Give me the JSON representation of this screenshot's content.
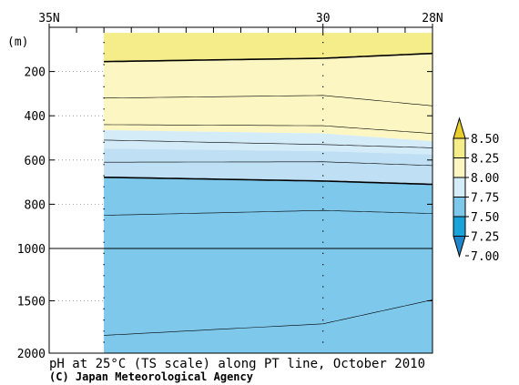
{
  "chart_data": {
    "type": "section-contour",
    "title": "pH at 25°C (TS scale) along PT line, October 2010",
    "credit": "(C) Japan Meteorological Agency",
    "y_unit_label": "(m)",
    "top_axis_labels": [
      {
        "text": "35N",
        "lat": 35
      },
      {
        "text": "30",
        "lat": 30
      },
      {
        "text": "28N",
        "lat": 28
      }
    ],
    "xlim": [
      35,
      28
    ],
    "x_minor_step": 0.5,
    "y_upper_ticks": [
      200,
      400,
      600,
      800,
      1000
    ],
    "y_lower_ticks": [
      1000,
      1500,
      2000
    ],
    "y_split_depth": 1000,
    "data_lat_range": [
      34,
      28
    ],
    "station_lats": [
      34,
      30
    ],
    "contour_lines": [
      {
        "level": 8.25,
        "style": "thick",
        "points": [
          [
            34,
            155
          ],
          [
            30,
            140
          ],
          [
            28,
            118
          ]
        ]
      },
      {
        "level": 8.0,
        "style": "thin",
        "points": [
          [
            34,
            320
          ],
          [
            30,
            308
          ],
          [
            28,
            355
          ]
        ]
      },
      {
        "level": 7.95,
        "style": "thin",
        "points": [
          [
            34,
            440
          ],
          [
            30,
            445
          ],
          [
            28,
            480
          ]
        ]
      },
      {
        "level": 7.85,
        "style": "thin",
        "points": [
          [
            34,
            510
          ],
          [
            30,
            530
          ],
          [
            28,
            545
          ]
        ]
      },
      {
        "level": 7.65,
        "style": "thin",
        "points": [
          [
            34,
            610
          ],
          [
            30,
            608
          ],
          [
            28,
            625
          ]
        ]
      },
      {
        "level": 7.5,
        "style": "thick",
        "points": [
          [
            34,
            678
          ],
          [
            30,
            695
          ],
          [
            28,
            710
          ]
        ]
      },
      {
        "level": 7.45,
        "style": "thin",
        "points": [
          [
            34,
            850
          ],
          [
            30,
            828
          ],
          [
            28,
            842
          ]
        ]
      },
      {
        "level": 7.4,
        "style": "thin",
        "points": [
          [
            34,
            1830
          ],
          [
            30,
            1720
          ],
          [
            28,
            1490
          ]
        ]
      }
    ],
    "fill_layers": [
      {
        "range": "8.25-8.50",
        "color": "#f5ec8a",
        "top": [
          [
            34,
            25
          ],
          [
            28,
            25
          ]
        ],
        "bottom_line": 0
      },
      {
        "range": "8.00-8.25",
        "color": "#fcf6c2",
        "top_line": 0,
        "bottom": [
          [
            34,
            465
          ],
          [
            30,
            480
          ],
          [
            28,
            515
          ]
        ]
      },
      {
        "range": "7.75-8.00",
        "color": "#d4ebf8",
        "top": [
          [
            34,
            465
          ],
          [
            30,
            480
          ],
          [
            28,
            515
          ]
        ],
        "bottom": [
          [
            34,
            548
          ],
          [
            30,
            560
          ],
          [
            28,
            575
          ]
        ]
      },
      {
        "range": "7.50-7.75",
        "color": "#bfe0f4",
        "top": [
          [
            34,
            548
          ],
          [
            30,
            560
          ],
          [
            28,
            575
          ]
        ],
        "bottom_line": 5
      },
      {
        "range": "7.25-7.50",
        "color": "#7ec8ec",
        "top_line": 5,
        "bottom": [
          [
            34,
            2000
          ],
          [
            28,
            2000
          ]
        ]
      }
    ],
    "colorbar": {
      "labels": [
        "8.50",
        "8.25",
        "8.00",
        "7.75",
        "7.50",
        "7.25",
        "7.00"
      ],
      "colors": [
        "#e8cf2b",
        "#f5ec8a",
        "#fcf6c2",
        "#d4ebf8",
        "#7ec8ec",
        "#1aa3d9"
      ],
      "arrow_top_color": "#e8cf2b",
      "arrow_bottom_color": "#1f86cc"
    }
  }
}
